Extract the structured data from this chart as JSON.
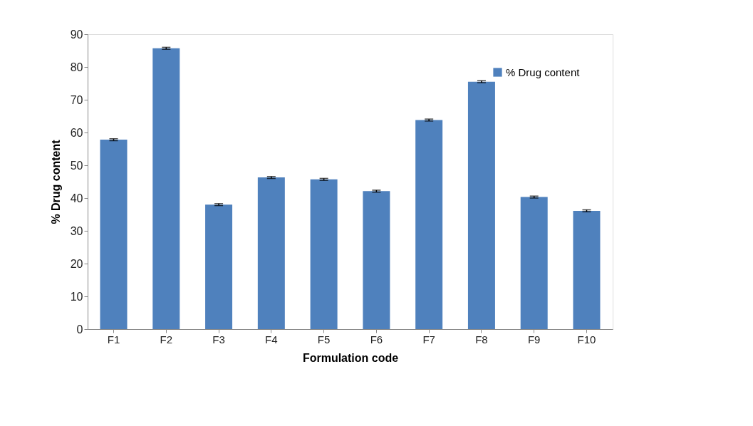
{
  "chart_data": {
    "type": "bar",
    "xlabel": "Formulation code",
    "ylabel": "% Drug content",
    "categories": [
      "F1",
      "F2",
      "F3",
      "F4",
      "F5",
      "F6",
      "F7",
      "F8",
      "F9",
      "F10"
    ],
    "series": [
      {
        "name": "% Drug content",
        "color": "#4f81bd",
        "values": [
          57.8,
          85.7,
          38.0,
          46.3,
          45.7,
          42.1,
          63.8,
          75.5,
          40.3,
          36.1
        ],
        "errors": [
          0.3,
          0.3,
          0.3,
          0.3,
          0.3,
          0.3,
          0.3,
          0.3,
          0.3,
          0.3
        ]
      }
    ],
    "ylim": [
      0,
      90
    ],
    "yticks": [
      0,
      10,
      20,
      30,
      40,
      50,
      60,
      70,
      80,
      90
    ],
    "grid": false,
    "legend": "top right"
  }
}
